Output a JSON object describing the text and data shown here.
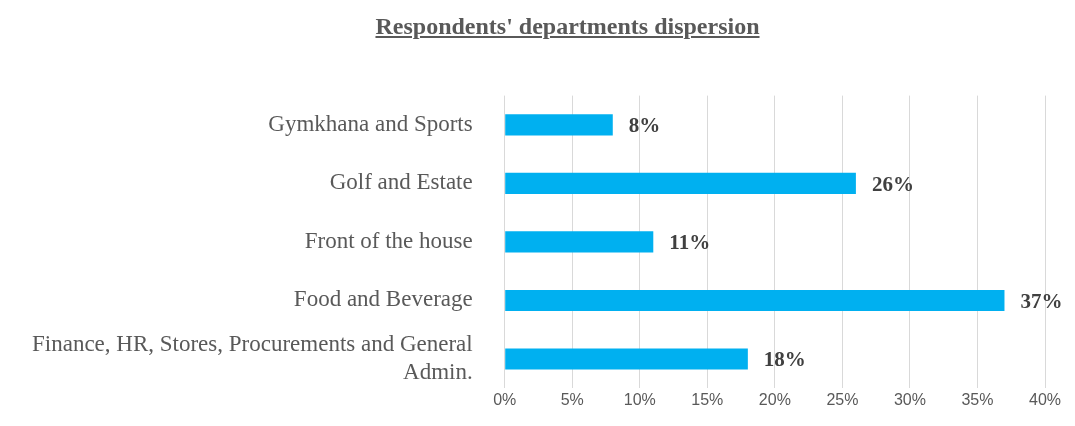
{
  "chart_data": {
    "type": "bar",
    "orientation": "horizontal",
    "title": "Respondents' departments dispersion",
    "categories": [
      "Gymkhana and Sports",
      "Golf and Estate",
      "Front of the house",
      "Food and Beverage",
      "Finance, HR, Stores, Procurements and General Admin."
    ],
    "values": [
      8,
      26,
      11,
      37,
      18
    ],
    "color": "#00b0f0",
    "value_labels": [
      "8%",
      "26%",
      "11%",
      "37%",
      "18%"
    ],
    "xlim": [
      0,
      40
    ],
    "xticks": [
      {
        "value": 0,
        "label": "0%"
      },
      {
        "value": 5,
        "label": "5%"
      },
      {
        "value": 10,
        "label": "10%"
      },
      {
        "value": 15,
        "label": "15%"
      },
      {
        "value": 20,
        "label": "20%"
      },
      {
        "value": 25,
        "label": "25%"
      },
      {
        "value": 30,
        "label": "30%"
      },
      {
        "value": 35,
        "label": "35%"
      },
      {
        "value": 40,
        "label": "40%"
      }
    ],
    "grid": "x",
    "legend": false
  }
}
